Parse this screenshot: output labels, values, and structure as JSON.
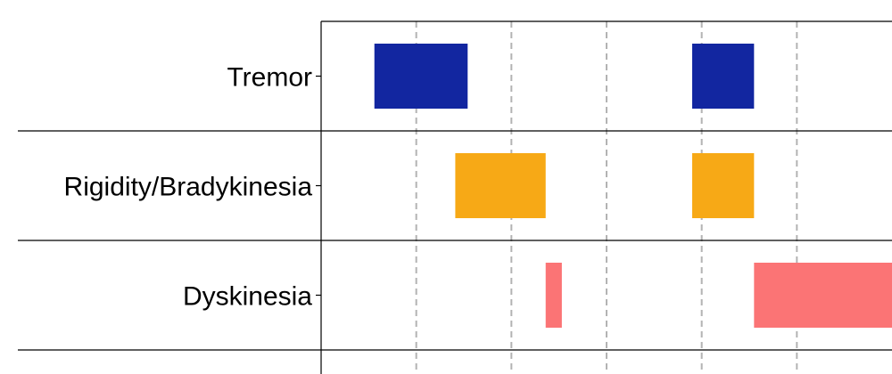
{
  "chart_data": {
    "type": "gantt",
    "title": "",
    "xlabel": "",
    "ylabel": "",
    "x_range": [
      0,
      6
    ],
    "x_grid": [
      1,
      2,
      3,
      4,
      5
    ],
    "grid": "x-dashed",
    "legend": "none",
    "rows": [
      {
        "label": "Tremor",
        "color": "#1226a0",
        "segments": [
          [
            0.56,
            1.54
          ],
          [
            3.9,
            4.55
          ]
        ]
      },
      {
        "label": "Rigidity/Bradykinesia",
        "color": "#f7a916",
        "segments": [
          [
            1.41,
            2.36
          ],
          [
            3.9,
            4.55
          ]
        ]
      },
      {
        "label": "Dyskinesia",
        "color": "#fb7475",
        "segments": [
          [
            2.36,
            2.53
          ],
          [
            4.55,
            6.0
          ]
        ]
      }
    ]
  }
}
